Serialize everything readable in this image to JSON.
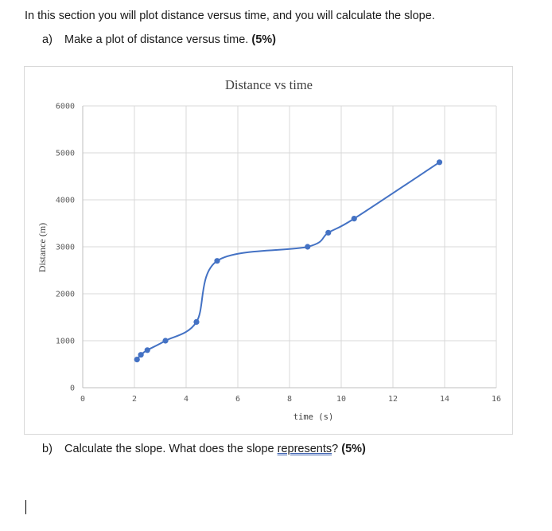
{
  "intro": "In this section you will plot distance versus time, and you will calculate the slope.",
  "question_a": {
    "label": "a)",
    "text": "Make a plot of distance versus time.",
    "points": "(5%)"
  },
  "question_b": {
    "label": "b)",
    "text_before": "Calculate the slope. What does the slope ",
    "underlined_word": "represents",
    "text_after": "?",
    "points": "(5%)"
  },
  "chart_data": {
    "type": "scatter",
    "title": "Distance vs time",
    "xlabel": "time (s)",
    "ylabel": "Distance (m)",
    "xlim": [
      0,
      16
    ],
    "ylim": [
      0,
      6000
    ],
    "xticks": [
      0,
      2,
      4,
      6,
      8,
      10,
      12,
      14,
      16
    ],
    "yticks": [
      0,
      1000,
      2000,
      3000,
      4000,
      5000,
      6000
    ],
    "grid": true,
    "smooth_line": true,
    "series": [
      {
        "color": "#4472c4",
        "x": [
          2.1,
          2.25,
          2.5,
          3.2,
          4.4,
          5.2,
          8.7,
          9.5,
          10.5,
          13.8
        ],
        "y": [
          600,
          700,
          800,
          1000,
          1400,
          2700,
          3000,
          3300,
          3600,
          4800
        ]
      }
    ]
  }
}
